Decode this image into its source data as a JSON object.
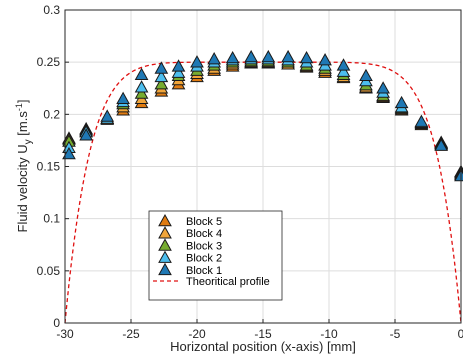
{
  "chart_data": {
    "type": "scatter",
    "xlabel": "Horizontal position (x-axis) [mm]",
    "ylabel": "Fluid velocity U",
    "ylabel_sub": "y",
    "ylabel_units_prefix": " [m.s",
    "ylabel_units_sup": "-1",
    "ylabel_units_suffix": "]",
    "xlim": [
      -30,
      0
    ],
    "ylim": [
      0,
      0.3
    ],
    "xticks": [
      "-30",
      "-25",
      "-20",
      "-15",
      "-10",
      "-5",
      "0"
    ],
    "yticks": [
      "0",
      "0.05",
      "0.1",
      "0.15",
      "0.2",
      "0.25",
      "0.3"
    ],
    "grid": true,
    "legend_position": "lower-left",
    "x": [
      -29.7,
      -28.4,
      -26.8,
      -25.6,
      -24.2,
      -22.7,
      -21.4,
      -20.0,
      -18.7,
      -17.3,
      -15.9,
      -14.6,
      -13.1,
      -11.7,
      -10.3,
      -8.9,
      -7.2,
      -5.9,
      -4.5,
      -3.0,
      -1.5,
      0.0
    ],
    "series": [
      {
        "name": "Block 5",
        "color": "#e07b10",
        "values": [
          0.177,
          0.186,
          0.196,
          0.204,
          0.211,
          0.222,
          0.229,
          0.236,
          0.242,
          0.246,
          0.249,
          0.249,
          0.248,
          0.245,
          0.24,
          0.235,
          0.225,
          0.216,
          0.204,
          0.19,
          0.173,
          0.145
        ]
      },
      {
        "name": "Block 4",
        "color": "#f0a53a",
        "values": [
          0.176,
          0.185,
          0.195,
          0.207,
          0.215,
          0.225,
          0.233,
          0.239,
          0.244,
          0.248,
          0.25,
          0.25,
          0.248,
          0.246,
          0.242,
          0.236,
          0.226,
          0.217,
          0.205,
          0.191,
          0.172,
          0.144
        ]
      },
      {
        "name": "Block 3",
        "color": "#77ac30",
        "values": [
          0.174,
          0.184,
          0.196,
          0.21,
          0.22,
          0.229,
          0.237,
          0.242,
          0.247,
          0.25,
          0.251,
          0.251,
          0.25,
          0.247,
          0.244,
          0.238,
          0.228,
          0.218,
          0.206,
          0.192,
          0.172,
          0.143
        ]
      },
      {
        "name": "Block 2",
        "color": "#4dbeee",
        "values": [
          0.168,
          0.183,
          0.196,
          0.212,
          0.226,
          0.236,
          0.24,
          0.246,
          0.25,
          0.252,
          0.253,
          0.253,
          0.252,
          0.25,
          0.247,
          0.241,
          0.232,
          0.221,
          0.207,
          0.192,
          0.171,
          0.142
        ]
      },
      {
        "name": "Block 1",
        "color": "#1f78b4",
        "values": [
          0.162,
          0.18,
          0.198,
          0.215,
          0.238,
          0.244,
          0.246,
          0.25,
          0.253,
          0.254,
          0.255,
          0.255,
          0.255,
          0.254,
          0.252,
          0.247,
          0.237,
          0.225,
          0.211,
          0.193,
          0.17,
          0.141
        ]
      }
    ],
    "theoretical": {
      "name": "Theoritical profile",
      "color": "#e01010",
      "peak": 0.25,
      "center": -15,
      "half_width": 15
    }
  }
}
